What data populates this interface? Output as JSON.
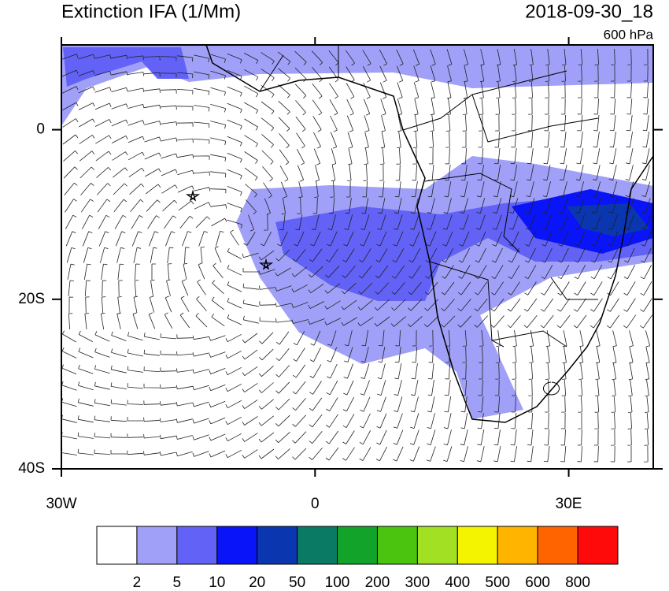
{
  "header": {
    "title": "Extinction IFA (1/Mm)",
    "date": "2018-09-30_18",
    "level": "600 hPa"
  },
  "map": {
    "xlim": [
      -30,
      40
    ],
    "ylim": [
      -40,
      10
    ],
    "xticks": [
      {
        "value": -30,
        "label": "30W"
      },
      0,
      {
        "value": 30,
        "label": "30E"
      }
    ],
    "yticks": [
      0,
      {
        "value": -20,
        "label": "20S"
      },
      {
        "value": -40,
        "label": "40S"
      }
    ]
  },
  "colorbar": {
    "levels": [
      2,
      5,
      10,
      20,
      50,
      100,
      200,
      300,
      400,
      500,
      600,
      800
    ],
    "colors": [
      "#ffffff",
      "#a0a0f8",
      "#6262f6",
      "#0a14f8",
      "#0a36b0",
      "#0a7a64",
      "#12a42a",
      "#4ac40e",
      "#a2e024",
      "#f4f400",
      "#ffb400",
      "#ff6400",
      "#ff0a0a"
    ]
  }
}
